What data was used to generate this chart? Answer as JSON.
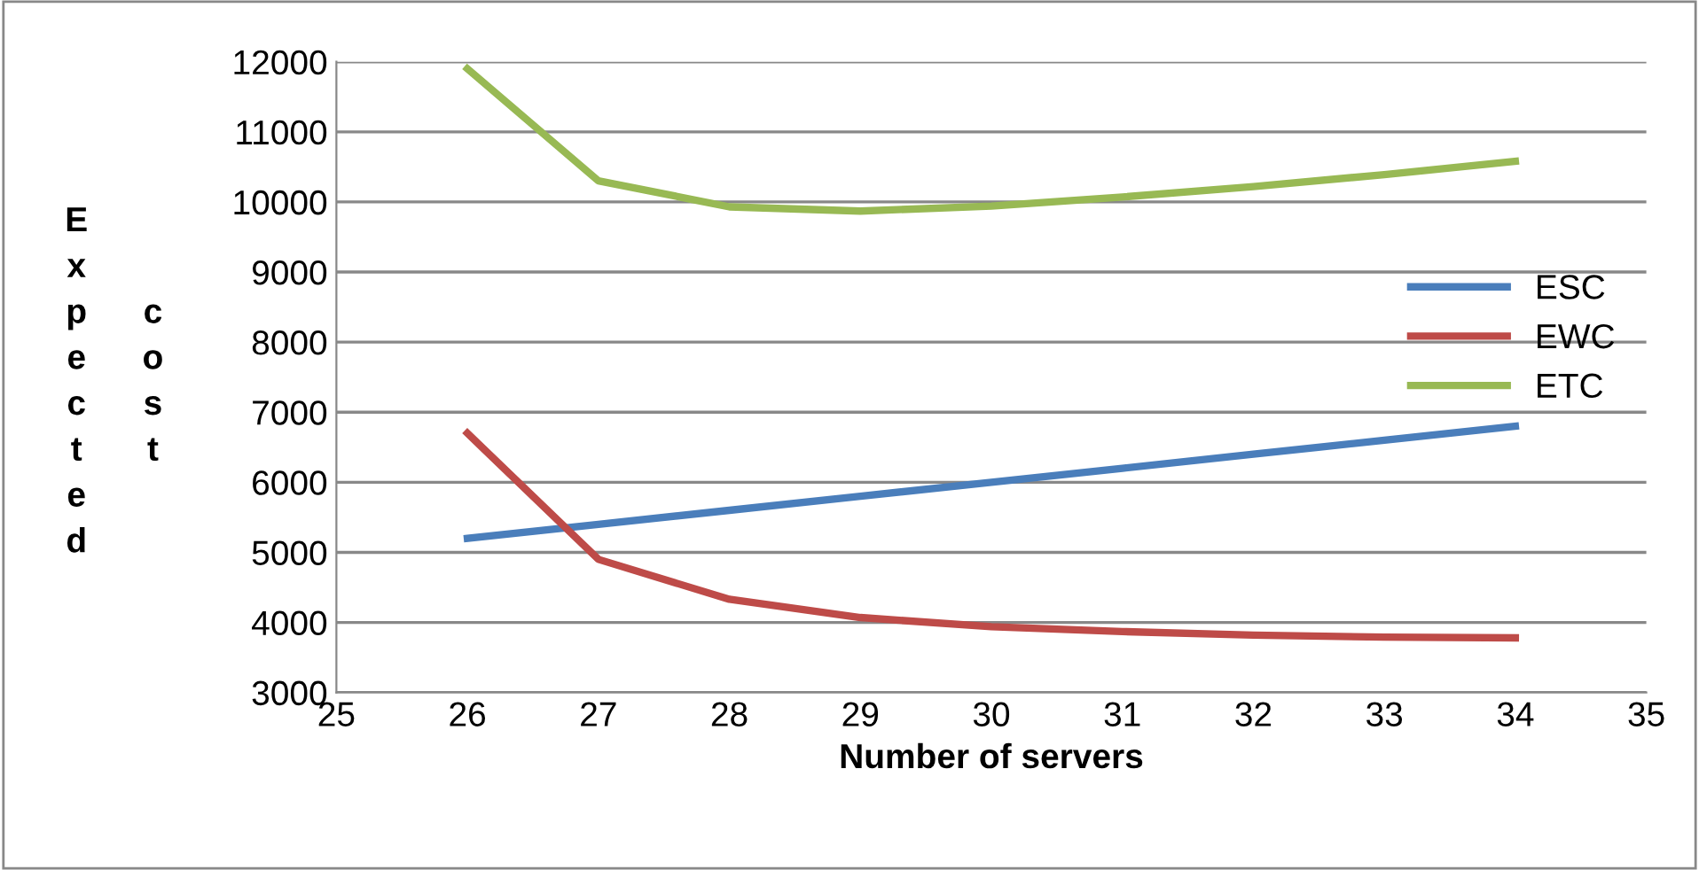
{
  "chart_data": {
    "type": "line",
    "xlabel": "Number of servers",
    "ylabel": "Expected cost",
    "x": [
      26,
      27,
      28,
      29,
      30,
      31,
      32,
      33,
      34
    ],
    "series": [
      {
        "name": "ESC",
        "color": "#4a7ebb",
        "values": [
          5200,
          5400,
          5600,
          5800,
          6000,
          6200,
          6400,
          6600,
          6800
        ]
      },
      {
        "name": "EWC",
        "color": "#be4b48",
        "values": [
          6700,
          4900,
          4330,
          4070,
          3940,
          3870,
          3820,
          3790,
          3780
        ]
      },
      {
        "name": "ETC",
        "color": "#98b954",
        "values": [
          11900,
          10300,
          9930,
          9870,
          9940,
          10070,
          10220,
          10390,
          10580
        ]
      }
    ],
    "xlim": [
      25,
      35
    ],
    "xticks": [
      25,
      26,
      27,
      28,
      29,
      30,
      31,
      32,
      33,
      34,
      35
    ],
    "ylim": [
      3000,
      12000
    ],
    "yticks": [
      3000,
      4000,
      5000,
      6000,
      7000,
      8000,
      9000,
      10000,
      11000,
      12000
    ],
    "grid": "y",
    "legend": "right",
    "marker": "none",
    "line_style": "solid"
  }
}
